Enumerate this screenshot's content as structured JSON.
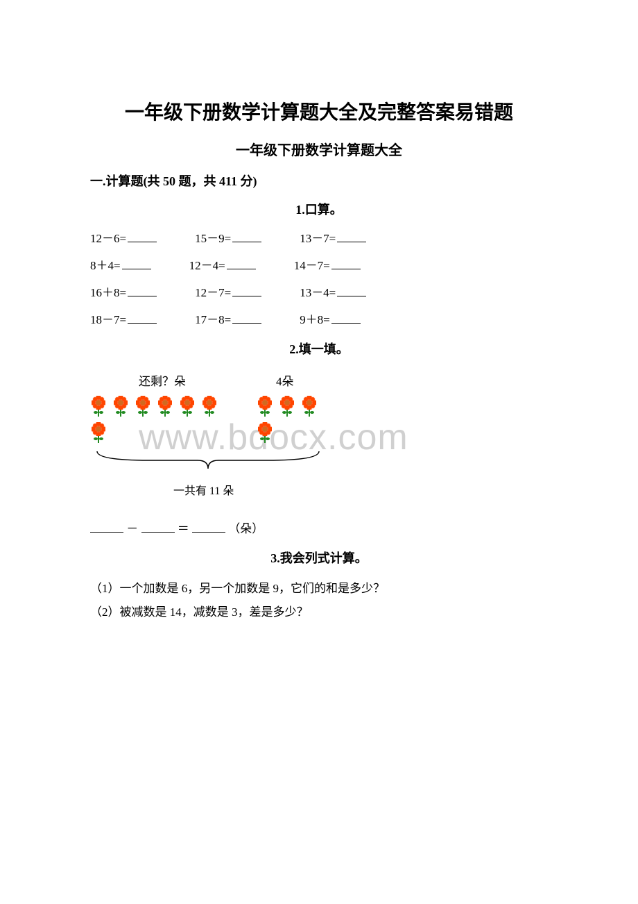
{
  "title": "一年级下册数学计算题大全及完整答案易错题",
  "subtitle": "一年级下册数学计算题大全",
  "section_info": "一.计算题(共 50 题，共 411 分)",
  "q1": {
    "header": "1.口算。",
    "rows": [
      [
        "12－6=",
        "15－9=",
        "13－7="
      ],
      [
        "8＋4=",
        "12－4=",
        "14－7="
      ],
      [
        "16＋8=",
        "12－7=",
        "13－4="
      ],
      [
        "18－7=",
        "17－8=",
        "9＋8="
      ]
    ]
  },
  "q2": {
    "header": "2.填一填。",
    "label_left": "还剩？朵",
    "label_right": "4朵",
    "flowers_left_count": 7,
    "flowers_right_count": 4,
    "total_label": "一共有 11 朵",
    "equation_unit": "（朵）"
  },
  "q3": {
    "header": "3.我会列式计算。",
    "p1": "（1）一个加数是 6，另一个加数是 9，它们的和是多少？",
    "p2": "（2）被减数是 14，减数是 3，差是多少？"
  },
  "watermark": "www.bdocx.com"
}
